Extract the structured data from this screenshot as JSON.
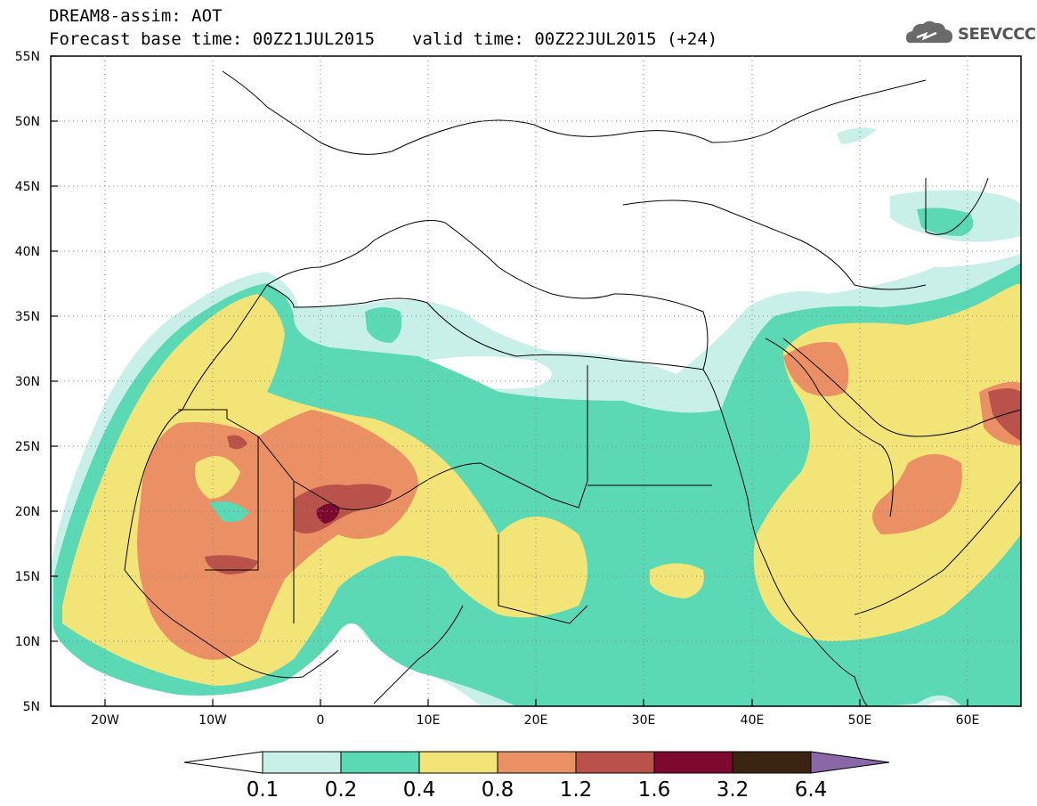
{
  "header": {
    "title": "DREAM8-assim: AOT",
    "base_time_label": "Forecast base time: 00Z21JUL2015",
    "valid_time_label": "valid time: 00Z22JUL2015 (+24)",
    "logo_text": "SEEVCCC",
    "logo_icon": "cloud-icon"
  },
  "axes": {
    "lat_labels": [
      "55N",
      "50N",
      "45N",
      "40N",
      "35N",
      "30N",
      "25N",
      "20N",
      "15N",
      "10N",
      "5N"
    ],
    "lon_labels": [
      "20W",
      "10W",
      "0",
      "10E",
      "20E",
      "30E",
      "40E",
      "50E",
      "60E"
    ]
  },
  "colorbar": {
    "labels": [
      "0.1",
      "0.2",
      "0.4",
      "0.8",
      "1.2",
      "1.6",
      "3.2",
      "6.4"
    ],
    "colors": [
      "#ffffff",
      "#c8f0e8",
      "#5ad9b4",
      "#f3e477",
      "#ea9064",
      "#b9524a",
      "#7d0a2e",
      "#3a2512",
      "#8a68a8"
    ]
  },
  "map_colors": {
    "land_outline": "#000000",
    "ocean": "#ffffff"
  }
}
